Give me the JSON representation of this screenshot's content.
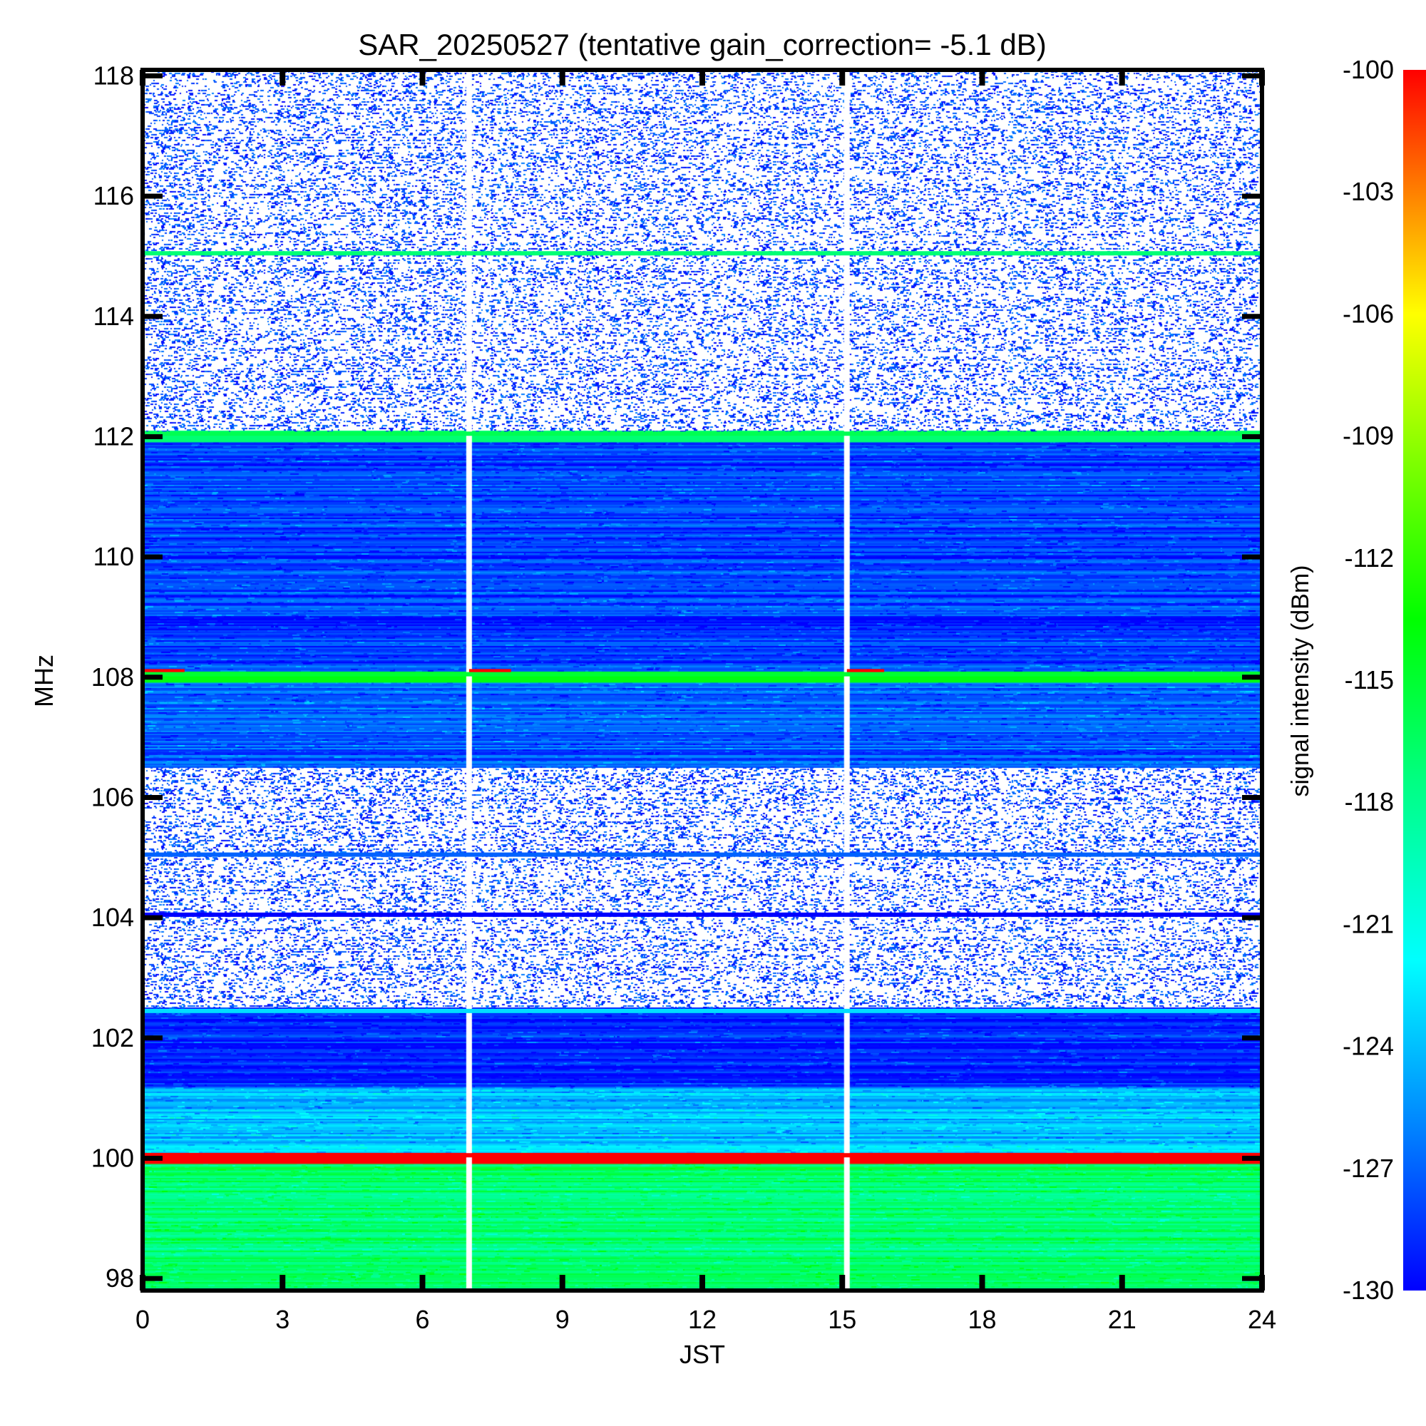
{
  "chart_data": {
    "type": "heatmap",
    "title": "SAR_20250527 (tentative gain_correction= -5.1 dB)",
    "xlabel": "JST",
    "ylabel": "MHz",
    "xlim": [
      0,
      24
    ],
    "ylim": [
      97.8,
      118.1
    ],
    "x_ticks": [
      "0",
      "3",
      "6",
      "9",
      "12",
      "15",
      "18",
      "21",
      "24"
    ],
    "y_ticks": [
      "98",
      "100",
      "102",
      "104",
      "106",
      "108",
      "110",
      "112",
      "114",
      "116",
      "118"
    ],
    "colorbar": {
      "label": "signal intensity (dBm)",
      "range": [
        -130,
        -100
      ],
      "ticks": [
        "-100",
        "-103",
        "-106",
        "-109",
        "-112",
        "-115",
        "-118",
        "-121",
        "-124",
        "-127",
        "-130"
      ],
      "colors": [
        "#0000ff",
        "#0080ff",
        "#00ffff",
        "#00ff80",
        "#00ff00",
        "#80ff00",
        "#ffff00",
        "#ff8000",
        "#ff0000"
      ]
    },
    "data_gaps_jst": [
      7.0,
      15.1
    ],
    "bands": [
      {
        "from_mhz": 97.8,
        "to_mhz": 100.0,
        "level_dbm": -117,
        "texture": "dense"
      },
      {
        "from_mhz": 100.0,
        "to_mhz": 100.1,
        "level_dbm": -100,
        "texture": "line"
      },
      {
        "from_mhz": 100.1,
        "to_mhz": 101.2,
        "level_dbm": -124,
        "texture": "dense"
      },
      {
        "from_mhz": 101.2,
        "to_mhz": 102.5,
        "level_dbm": -129,
        "texture": "dense"
      },
      {
        "from_mhz": 102.5,
        "to_mhz": 106.5,
        "level_dbm": -130,
        "texture": "sparse"
      },
      {
        "from_mhz": 106.5,
        "to_mhz": 108.0,
        "level_dbm": -127,
        "texture": "dense"
      },
      {
        "from_mhz": 108.0,
        "to_mhz": 108.1,
        "level_dbm": -114,
        "texture": "line"
      },
      {
        "from_mhz": 108.1,
        "to_mhz": 112.0,
        "level_dbm": -128,
        "texture": "dense"
      },
      {
        "from_mhz": 112.0,
        "to_mhz": 112.1,
        "level_dbm": -117,
        "texture": "line"
      },
      {
        "from_mhz": 112.1,
        "to_mhz": 118.1,
        "level_dbm": -130,
        "texture": "sparse"
      }
    ],
    "lines": [
      {
        "freq_mhz": 100.05,
        "level_dbm": -100,
        "from_jst": 0,
        "to_jst": 24
      },
      {
        "freq_mhz": 108.1,
        "level_dbm": -100,
        "from_jst": 0,
        "to_jst": 0.9
      },
      {
        "freq_mhz": 108.1,
        "level_dbm": -100,
        "from_jst": 7.0,
        "to_jst": 7.9
      },
      {
        "freq_mhz": 108.1,
        "level_dbm": -100,
        "from_jst": 15.1,
        "to_jst": 15.9
      },
      {
        "freq_mhz": 108.05,
        "level_dbm": -115,
        "from_jst": 0,
        "to_jst": 24
      },
      {
        "freq_mhz": 112.05,
        "level_dbm": -116,
        "from_jst": 0,
        "to_jst": 24
      },
      {
        "freq_mhz": 115.05,
        "level_dbm": -117,
        "from_jst": 0,
        "to_jst": 24
      },
      {
        "freq_mhz": 102.45,
        "level_dbm": -123,
        "from_jst": 0,
        "to_jst": 24
      },
      {
        "freq_mhz": 105.05,
        "level_dbm": -127,
        "from_jst": 0,
        "to_jst": 24
      },
      {
        "freq_mhz": 104.05,
        "level_dbm": -130,
        "from_jst": 0,
        "to_jst": 24
      }
    ]
  }
}
